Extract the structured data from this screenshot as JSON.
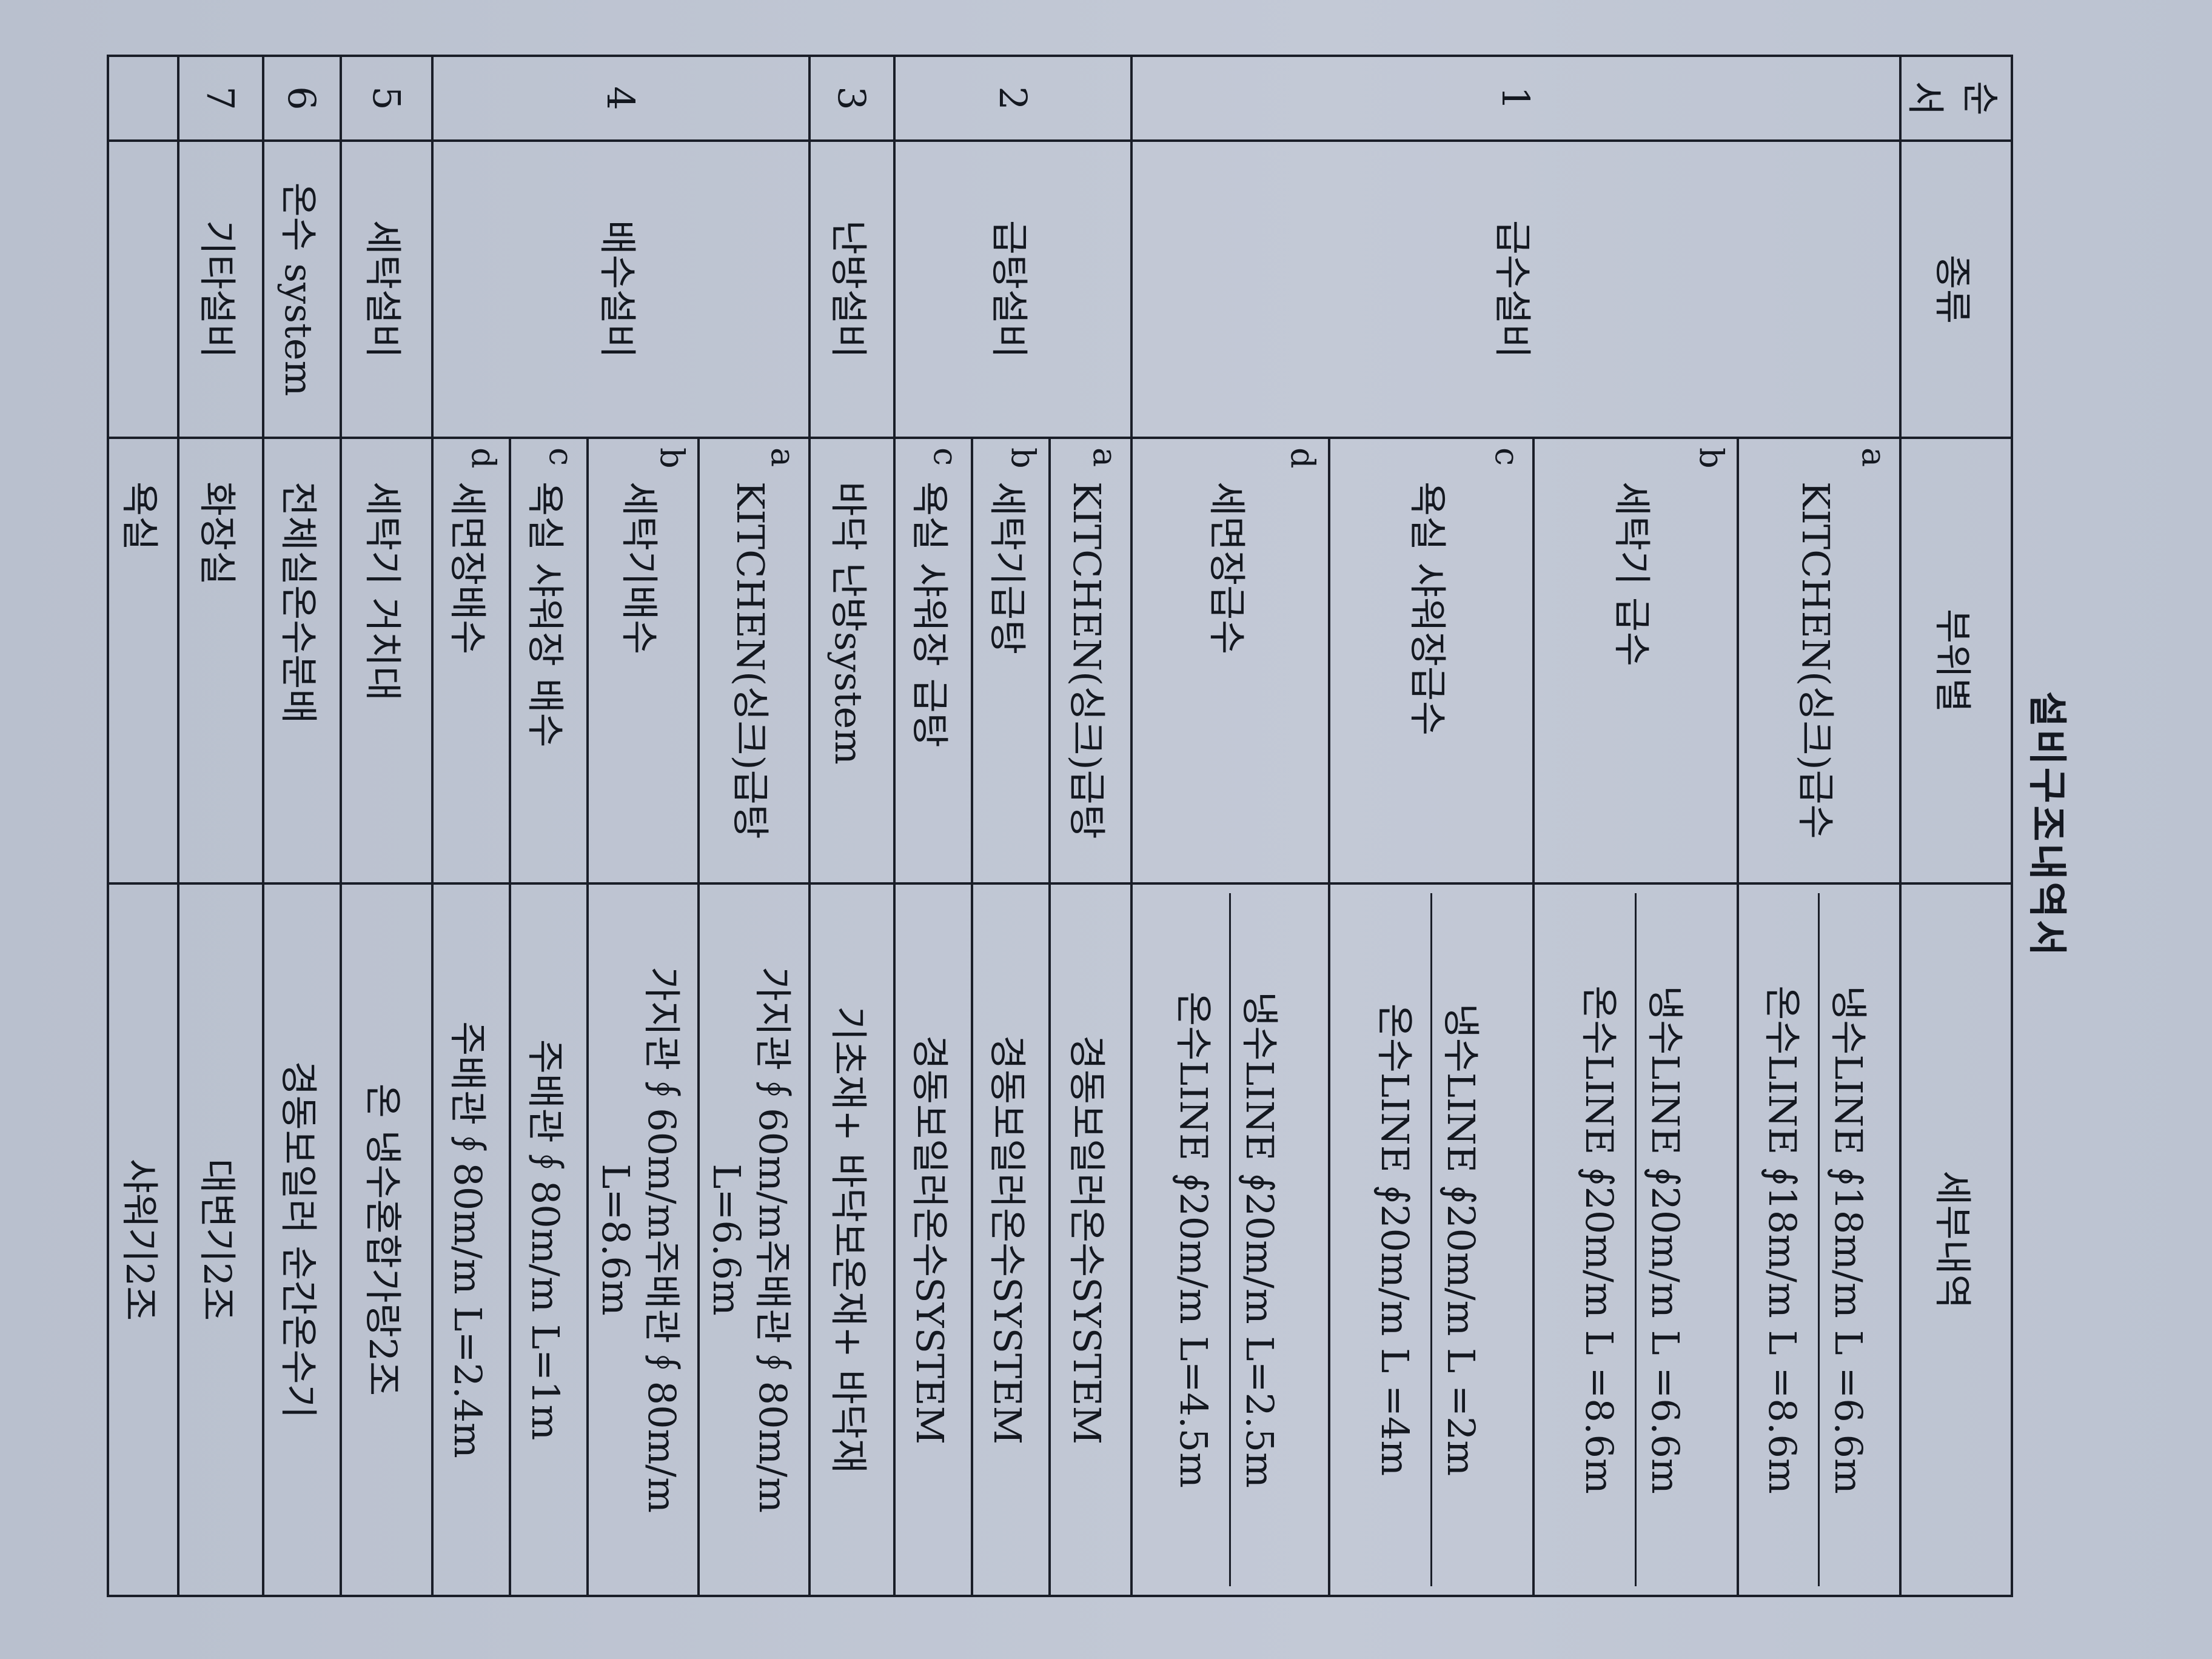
{
  "title": "설비구조내역서",
  "headers": [
    "순서",
    "종류",
    "부위별",
    "세부내역"
  ],
  "groups": [
    {
      "no": "1",
      "category": "급수설비",
      "items": [
        {
          "letter": "a",
          "part": "KITCHEN(싱크)급수",
          "details": [
            "냉수LINE ∮18m/m L =6.6m",
            "온수LINE ∮18m/m L =8.6m"
          ]
        },
        {
          "letter": "b",
          "part": "세탁기 급수",
          "details": [
            "냉수LINE ∮20m/m L =6.6m",
            "온수LINE ∮20m/m L =8.6m"
          ]
        },
        {
          "letter": "c",
          "part": "욕실 샤워장급수",
          "details": [
            "냉수LINE ∮20m/m L =2m",
            "온수LINE ∮20m/m L =4m"
          ]
        },
        {
          "letter": "d",
          "part": "세면장급수",
          "details": [
            "냉수LINE ∮20m/m L=2.5m",
            "온수LINE ∮20m/m L=4.5m"
          ]
        }
      ]
    },
    {
      "no": "2",
      "category": "급탕설비",
      "items": [
        {
          "letter": "a",
          "part": "KITCHEN(싱크)급탕",
          "details": [
            "경동보일러온수SYSTEM"
          ]
        },
        {
          "letter": "b",
          "part": "세탁기급탕",
          "details": [
            "경동보일러온수SYSTEM"
          ]
        },
        {
          "letter": "c",
          "part": "욕실 샤워장 급탕",
          "details": [
            "경동보일러온수SYSTEM"
          ]
        }
      ]
    },
    {
      "no": "3",
      "category": "난방설비",
      "items": [
        {
          "letter": "",
          "part": "바닥 난방system",
          "details": [
            "기초재+ 바닥보온재+ 바닥재"
          ]
        }
      ]
    },
    {
      "no": "4",
      "category": "배수설비",
      "items": [
        {
          "letter": "a",
          "part": "KITCHEN(싱크)급탕",
          "details": [
            "가지관∮60m/m주배관∮80m/m L=6.6m"
          ]
        },
        {
          "letter": "b",
          "part": "세탁기배수",
          "details": [
            "가지관∮60m/m주배관∮80m/m L=8.6m"
          ]
        },
        {
          "letter": "c",
          "part": "욕실 샤워장 배수",
          "details": [
            "주배관∮80m/m L=1m"
          ]
        },
        {
          "letter": "d",
          "part": "세면장배수",
          "details": [
            "주배관∮80m/m L=2.4m"
          ]
        }
      ]
    },
    {
      "no": "5",
      "category": "세탁설비",
      "items": [
        {
          "letter": "",
          "part": "세탁기 거치대",
          "details": [
            "온 냉수혼합가랑2조"
          ]
        }
      ]
    },
    {
      "no": "6",
      "category": "온수 system",
      "items": [
        {
          "letter": "",
          "part": "전체실온수분배",
          "details": [
            "경동보일러 순간온수기"
          ]
        }
      ]
    },
    {
      "no": "7",
      "category": "기타설비",
      "items": [
        {
          "letter": "",
          "part": "화장실",
          "details": [
            "대변기2조"
          ]
        }
      ]
    },
    {
      "no": "",
      "category": "",
      "items": [
        {
          "letter": "",
          "part": "욕실",
          "details": [
            "샤워기2조"
          ]
        }
      ]
    }
  ]
}
